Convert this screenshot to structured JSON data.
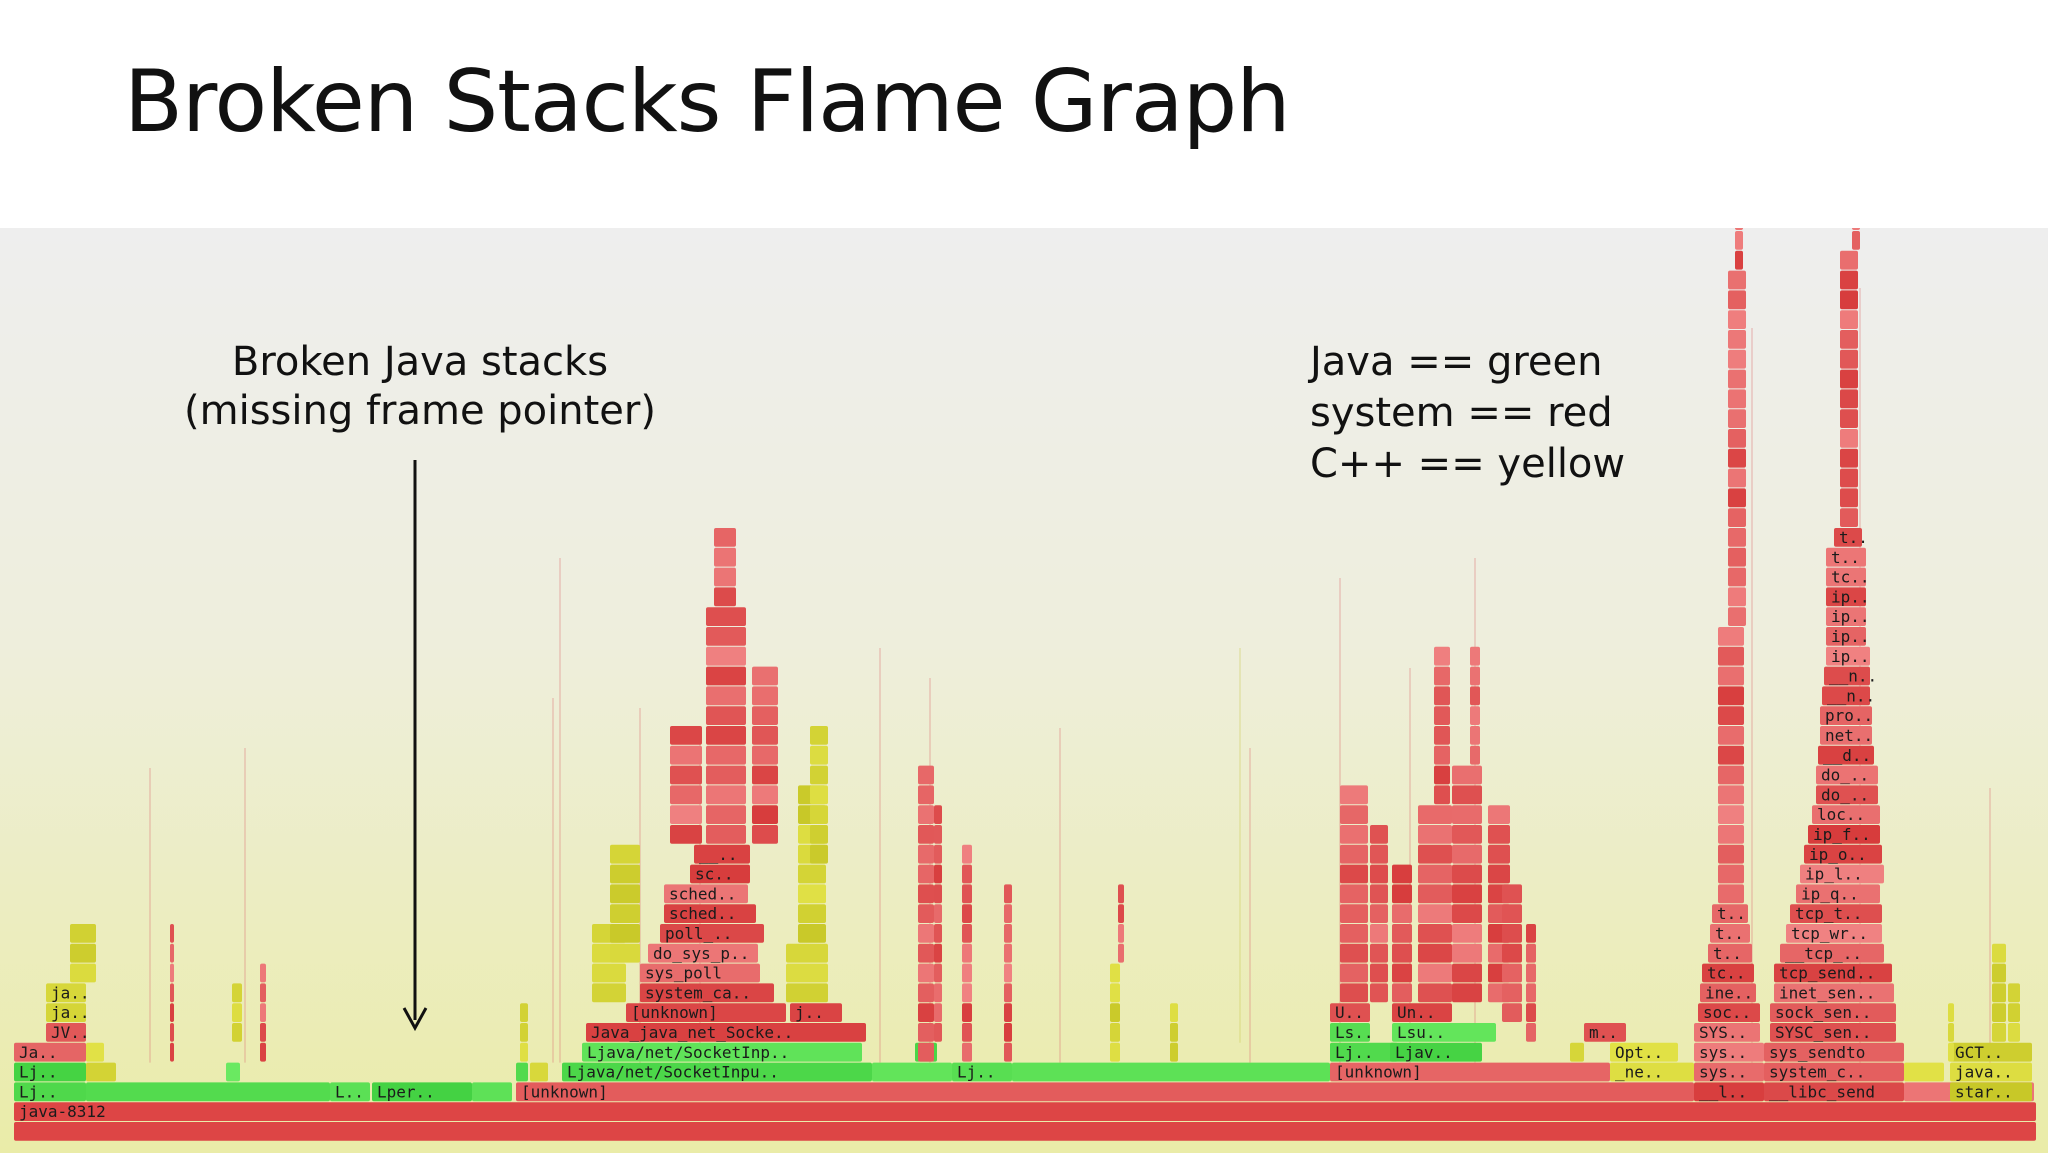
{
  "title": "Broken Stacks Flame Graph",
  "annotation_broken": {
    "line1": "Broken Java stacks",
    "line2": "(missing frame pointer)"
  },
  "legend": {
    "java": "Java == green",
    "system": "system == red",
    "cpp": "C++ == yellow"
  },
  "colors": {
    "java": "#4fdc4f",
    "system": "#e34f4f",
    "cpp": "#d8d840",
    "root": "#dd4545"
  },
  "frames": {
    "root": "java-8312",
    "left_stack": [
      "Lj..",
      "Lj..",
      "Ja..",
      "JV..",
      "ja..",
      "ja.."
    ],
    "left_small": [
      "L..",
      "Lper.."
    ],
    "unknown_main": "[unknown]",
    "socket_tower": [
      "Ljava/net/SocketInpu..",
      "Ljava/net/SocketInp..",
      "Java_java_net_Socke..",
      "[unknown]",
      "system_ca..",
      "sys_poll",
      "do_sys_p..",
      "poll_..",
      "sched..",
      "sched..",
      "sc..",
      "__.."
    ],
    "socket_side": "j..",
    "mid_small": "Lj..",
    "unknown_right": "[unknown]",
    "right_left_stack": [
      "Lj..",
      "Ls..",
      "U.."
    ],
    "right_mid_stack": [
      "Ljav..",
      "Lsu..",
      "Un.."
    ],
    "opt_stack": [
      "_ne..",
      "Opt..",
      "m.."
    ],
    "tall_left": [
      "__l..",
      "sys..",
      "sys..",
      "SYS..",
      "soc..",
      "ine..",
      "tc..",
      "t..",
      "t..",
      "t.."
    ],
    "tall_right": [
      "__libc_send",
      "system_c..",
      "sys_sendto",
      "SYSC_sen..",
      "sock_sen..",
      "inet_sen..",
      "tcp_send..",
      "__tcp_..",
      "tcp_wr..",
      "tcp_t..",
      "ip_q..",
      "ip_l..",
      "ip_o..",
      "ip_f..",
      "loc..",
      "do_..",
      "do_..",
      "__d..",
      "net..",
      "pro..",
      "__n..",
      "__n..",
      "ip..",
      "ip..",
      "ip..",
      "ip..",
      "tc..",
      "t..",
      "t.."
    ],
    "far_right": [
      "star..",
      "java..",
      "GCT.."
    ]
  }
}
